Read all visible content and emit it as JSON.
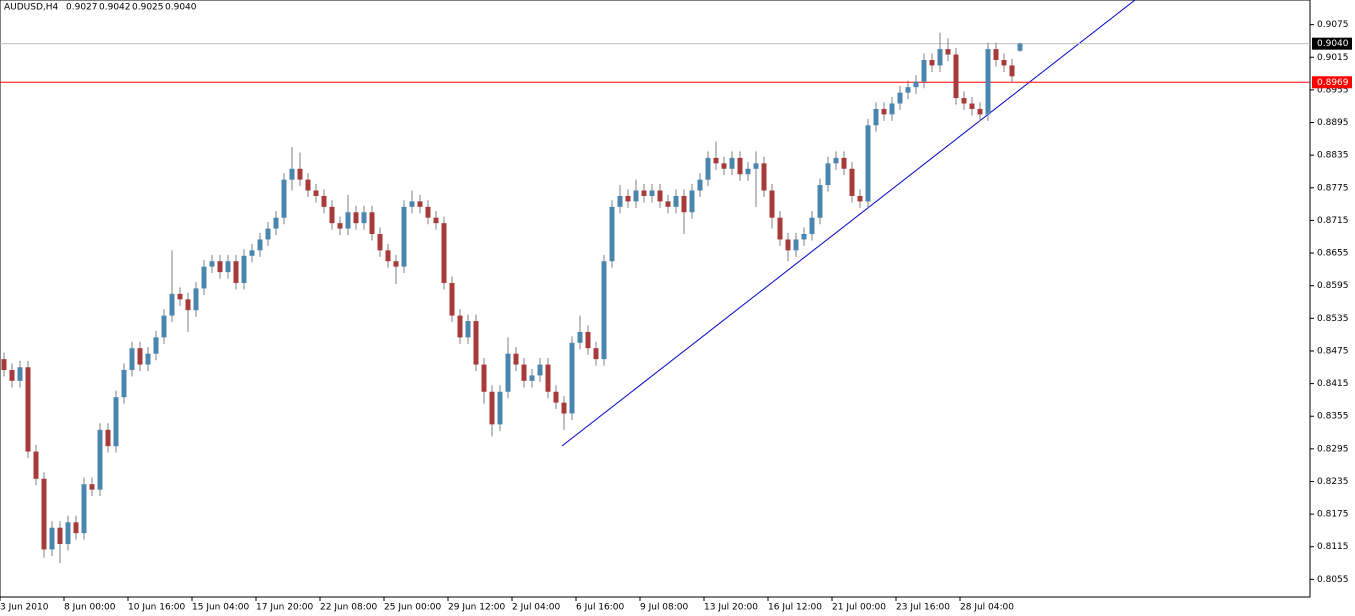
{
  "chart_data": {
    "type": "candlestick",
    "header": {
      "symbol": "AUDUSD,H4",
      "ohlc_labels": [
        "0.9027",
        "0.9042",
        "0.9025",
        "0.9040"
      ]
    },
    "categories": [
      null,
      null,
      "3 Jun 2010",
      null,
      null,
      null,
      null,
      null,
      null,
      null,
      "8 Jun 00:00",
      null,
      null,
      null,
      null,
      null,
      null,
      null,
      "10 Jun 16:00",
      null,
      null,
      null,
      null,
      null,
      null,
      null,
      "15 Jun 04:00",
      null,
      null,
      null,
      null,
      null,
      null,
      null,
      "17 Jun 20:00",
      null,
      null,
      null,
      null,
      null,
      null,
      null,
      "22 Jun 08:00",
      null,
      null,
      null,
      null,
      null,
      null,
      null,
      "25 Jun 00:00",
      null,
      null,
      null,
      null,
      null,
      null,
      null,
      "29 Jun 12:00",
      null,
      null,
      null,
      null,
      null,
      null,
      null,
      "2 Jul 04:00",
      null,
      null,
      null,
      null,
      null,
      null,
      null,
      "6 Jul 16:00",
      null,
      null,
      null,
      null,
      null,
      null,
      null,
      "9 Jul 08:00",
      null,
      null,
      null,
      null,
      null,
      null,
      null,
      "13 Jul 20:00",
      null,
      null,
      null,
      null,
      null,
      null,
      null,
      "16 Jul 12:00",
      null,
      null,
      null,
      null,
      null,
      null,
      null,
      "21 Jul 00:00",
      null,
      null,
      null,
      null,
      null,
      null,
      null,
      "23 Jul 16:00",
      null,
      null,
      null,
      null,
      null,
      null,
      null,
      "28 Jul 04:00",
      null,
      null,
      null,
      null,
      null
    ],
    "ohlc": [
      [
        0.846,
        0.8472,
        0.8428,
        0.844
      ],
      [
        0.844,
        0.8452,
        0.8408,
        0.842
      ],
      [
        0.842,
        0.8457,
        0.8408,
        0.8445
      ],
      [
        0.8445,
        0.8457,
        0.8278,
        0.829
      ],
      [
        0.829,
        0.8302,
        0.8228,
        0.824
      ],
      [
        0.824,
        0.8252,
        0.8095,
        0.811
      ],
      [
        0.811,
        0.8162,
        0.8098,
        0.815
      ],
      [
        0.815,
        0.8162,
        0.8085,
        0.812
      ],
      [
        0.812,
        0.8172,
        0.8108,
        0.816
      ],
      [
        0.816,
        0.8172,
        0.8128,
        0.814
      ],
      [
        0.814,
        0.8242,
        0.8128,
        0.823
      ],
      [
        0.823,
        0.8242,
        0.8208,
        0.822
      ],
      [
        0.822,
        0.8342,
        0.8208,
        0.833
      ],
      [
        0.833,
        0.8342,
        0.8288,
        0.83
      ],
      [
        0.83,
        0.8402,
        0.8288,
        0.839
      ],
      [
        0.839,
        0.8452,
        0.8378,
        0.844
      ],
      [
        0.844,
        0.8492,
        0.8428,
        0.848
      ],
      [
        0.848,
        0.8492,
        0.8438,
        0.845
      ],
      [
        0.845,
        0.8482,
        0.8438,
        0.847
      ],
      [
        0.847,
        0.8512,
        0.8458,
        0.85
      ],
      [
        0.85,
        0.8552,
        0.8488,
        0.854
      ],
      [
        0.854,
        0.866,
        0.8528,
        0.858
      ],
      [
        0.858,
        0.8592,
        0.8558,
        0.857
      ],
      [
        0.857,
        0.8582,
        0.851,
        0.855
      ],
      [
        0.855,
        0.8602,
        0.8538,
        0.859
      ],
      [
        0.859,
        0.8642,
        0.8578,
        0.863
      ],
      [
        0.863,
        0.8652,
        0.8618,
        0.864
      ],
      [
        0.864,
        0.8652,
        0.8608,
        0.862
      ],
      [
        0.862,
        0.8652,
        0.8608,
        0.864
      ],
      [
        0.864,
        0.8652,
        0.8588,
        0.86
      ],
      [
        0.86,
        0.8662,
        0.8588,
        0.865
      ],
      [
        0.865,
        0.8672,
        0.8638,
        0.866
      ],
      [
        0.866,
        0.8692,
        0.8648,
        0.868
      ],
      [
        0.868,
        0.8712,
        0.8668,
        0.87
      ],
      [
        0.87,
        0.8732,
        0.8688,
        0.872
      ],
      [
        0.872,
        0.8802,
        0.8708,
        0.879
      ],
      [
        0.879,
        0.885,
        0.877,
        0.881
      ],
      [
        0.881,
        0.884,
        0.8778,
        0.879
      ],
      [
        0.879,
        0.8802,
        0.8758,
        0.877
      ],
      [
        0.877,
        0.8782,
        0.8748,
        0.876
      ],
      [
        0.876,
        0.8772,
        0.8728,
        0.874
      ],
      [
        0.874,
        0.8752,
        0.8698,
        0.871
      ],
      [
        0.871,
        0.8722,
        0.8688,
        0.87
      ],
      [
        0.87,
        0.8762,
        0.8688,
        0.873
      ],
      [
        0.873,
        0.8742,
        0.8698,
        0.871
      ],
      [
        0.871,
        0.8742,
        0.8698,
        0.873
      ],
      [
        0.873,
        0.8742,
        0.8678,
        0.869
      ],
      [
        0.869,
        0.8702,
        0.8648,
        0.866
      ],
      [
        0.866,
        0.8672,
        0.8628,
        0.864
      ],
      [
        0.864,
        0.8652,
        0.8598,
        0.863
      ],
      [
        0.863,
        0.8752,
        0.8618,
        0.874
      ],
      [
        0.874,
        0.877,
        0.8728,
        0.875
      ],
      [
        0.875,
        0.8762,
        0.8728,
        0.874
      ],
      [
        0.874,
        0.8752,
        0.8708,
        0.872
      ],
      [
        0.872,
        0.8732,
        0.8698,
        0.871
      ],
      [
        0.871,
        0.8722,
        0.8588,
        0.86
      ],
      [
        0.86,
        0.8612,
        0.8528,
        0.854
      ],
      [
        0.854,
        0.8552,
        0.8488,
        0.85
      ],
      [
        0.85,
        0.8542,
        0.8488,
        0.853
      ],
      [
        0.853,
        0.8542,
        0.8438,
        0.845
      ],
      [
        0.845,
        0.8462,
        0.8378,
        0.84
      ],
      [
        0.84,
        0.8412,
        0.8318,
        0.834
      ],
      [
        0.834,
        0.8412,
        0.8328,
        0.84
      ],
      [
        0.84,
        0.85,
        0.8388,
        0.847
      ],
      [
        0.847,
        0.8482,
        0.8438,
        0.845
      ],
      [
        0.845,
        0.8462,
        0.8408,
        0.842
      ],
      [
        0.842,
        0.8442,
        0.8408,
        0.843
      ],
      [
        0.843,
        0.8462,
        0.8418,
        0.845
      ],
      [
        0.845,
        0.8462,
        0.8388,
        0.84
      ],
      [
        0.84,
        0.8412,
        0.8368,
        0.838
      ],
      [
        0.838,
        0.8392,
        0.833,
        0.836
      ],
      [
        0.836,
        0.8502,
        0.8348,
        0.849
      ],
      [
        0.849,
        0.854,
        0.8478,
        0.851
      ],
      [
        0.851,
        0.8522,
        0.8468,
        0.848
      ],
      [
        0.848,
        0.8492,
        0.8448,
        0.846
      ],
      [
        0.846,
        0.8652,
        0.8448,
        0.864
      ],
      [
        0.864,
        0.8752,
        0.8628,
        0.874
      ],
      [
        0.874,
        0.878,
        0.8728,
        0.876
      ],
      [
        0.876,
        0.8772,
        0.8738,
        0.875
      ],
      [
        0.875,
        0.879,
        0.8738,
        0.877
      ],
      [
        0.877,
        0.8782,
        0.8748,
        0.876
      ],
      [
        0.876,
        0.8782,
        0.8748,
        0.877
      ],
      [
        0.877,
        0.8782,
        0.8738,
        0.875
      ],
      [
        0.875,
        0.8762,
        0.8728,
        0.874
      ],
      [
        0.874,
        0.8772,
        0.8728,
        0.876
      ],
      [
        0.876,
        0.8772,
        0.869,
        0.873
      ],
      [
        0.873,
        0.8782,
        0.8718,
        0.877
      ],
      [
        0.877,
        0.8802,
        0.8758,
        0.879
      ],
      [
        0.879,
        0.8842,
        0.8778,
        0.883
      ],
      [
        0.883,
        0.886,
        0.8808,
        0.882
      ],
      [
        0.882,
        0.8832,
        0.8798,
        0.881
      ],
      [
        0.881,
        0.8842,
        0.8798,
        0.883
      ],
      [
        0.883,
        0.8842,
        0.8788,
        0.88
      ],
      [
        0.88,
        0.8822,
        0.8788,
        0.881
      ],
      [
        0.881,
        0.8842,
        0.874,
        0.882
      ],
      [
        0.882,
        0.8832,
        0.8758,
        0.877
      ],
      [
        0.877,
        0.8782,
        0.87,
        0.872
      ],
      [
        0.872,
        0.8732,
        0.8668,
        0.868
      ],
      [
        0.868,
        0.8692,
        0.864,
        0.866
      ],
      [
        0.866,
        0.8692,
        0.8648,
        0.868
      ],
      [
        0.868,
        0.8702,
        0.8668,
        0.869
      ],
      [
        0.869,
        0.8732,
        0.8678,
        0.872
      ],
      [
        0.872,
        0.8792,
        0.8708,
        0.878
      ],
      [
        0.878,
        0.8832,
        0.8768,
        0.882
      ],
      [
        0.882,
        0.8842,
        0.8808,
        0.883
      ],
      [
        0.883,
        0.8842,
        0.8798,
        0.881
      ],
      [
        0.881,
        0.8822,
        0.8748,
        0.876
      ],
      [
        0.876,
        0.8772,
        0.8738,
        0.875
      ],
      [
        0.875,
        0.8902,
        0.8738,
        0.889
      ],
      [
        0.889,
        0.8932,
        0.8878,
        0.892
      ],
      [
        0.892,
        0.8932,
        0.8898,
        0.891
      ],
      [
        0.891,
        0.8942,
        0.8898,
        0.893
      ],
      [
        0.893,
        0.8962,
        0.8918,
        0.895
      ],
      [
        0.895,
        0.8972,
        0.8938,
        0.896
      ],
      [
        0.896,
        0.8982,
        0.8948,
        0.897
      ],
      [
        0.897,
        0.9022,
        0.8958,
        0.901
      ],
      [
        0.901,
        0.9022,
        0.8988,
        0.9
      ],
      [
        0.9,
        0.906,
        0.8988,
        0.903
      ],
      [
        0.903,
        0.905,
        0.9008,
        0.902
      ],
      [
        0.902,
        0.9032,
        0.8928,
        0.894
      ],
      [
        0.894,
        0.8952,
        0.8918,
        0.893
      ],
      [
        0.893,
        0.8942,
        0.8908,
        0.892
      ],
      [
        0.892,
        0.8932,
        0.8898,
        0.891
      ],
      [
        0.891,
        0.9042,
        0.8898,
        0.903
      ],
      [
        0.903,
        0.9042,
        0.8998,
        0.901
      ],
      [
        0.901,
        0.9022,
        0.8988,
        0.9
      ],
      [
        0.9,
        0.9012,
        0.8968,
        0.898
      ],
      [
        0.9027,
        0.9042,
        0.9025,
        0.904
      ]
    ],
    "up_color": "#4a86b0",
    "down_color": "#a83a3a",
    "wick_color": "#808080",
    "ylim": [
      0.80226,
      0.91203
    ],
    "yticks": [
      0.9075,
      0.9015,
      0.8955,
      0.8895,
      0.8835,
      0.8775,
      0.8715,
      0.8655,
      0.8595,
      0.8535,
      0.8475,
      0.8415,
      0.8355,
      0.8295,
      0.8235,
      0.8175,
      0.8115,
      0.8055
    ],
    "price_lines": [
      {
        "value": 0.904,
        "label": "0.9040",
        "color": "#c0c0c0",
        "label_bg": "#000000"
      },
      {
        "value": 0.8969,
        "color": "#ff0000",
        "label_bg": "#ff0000"
      }
    ]
  }
}
